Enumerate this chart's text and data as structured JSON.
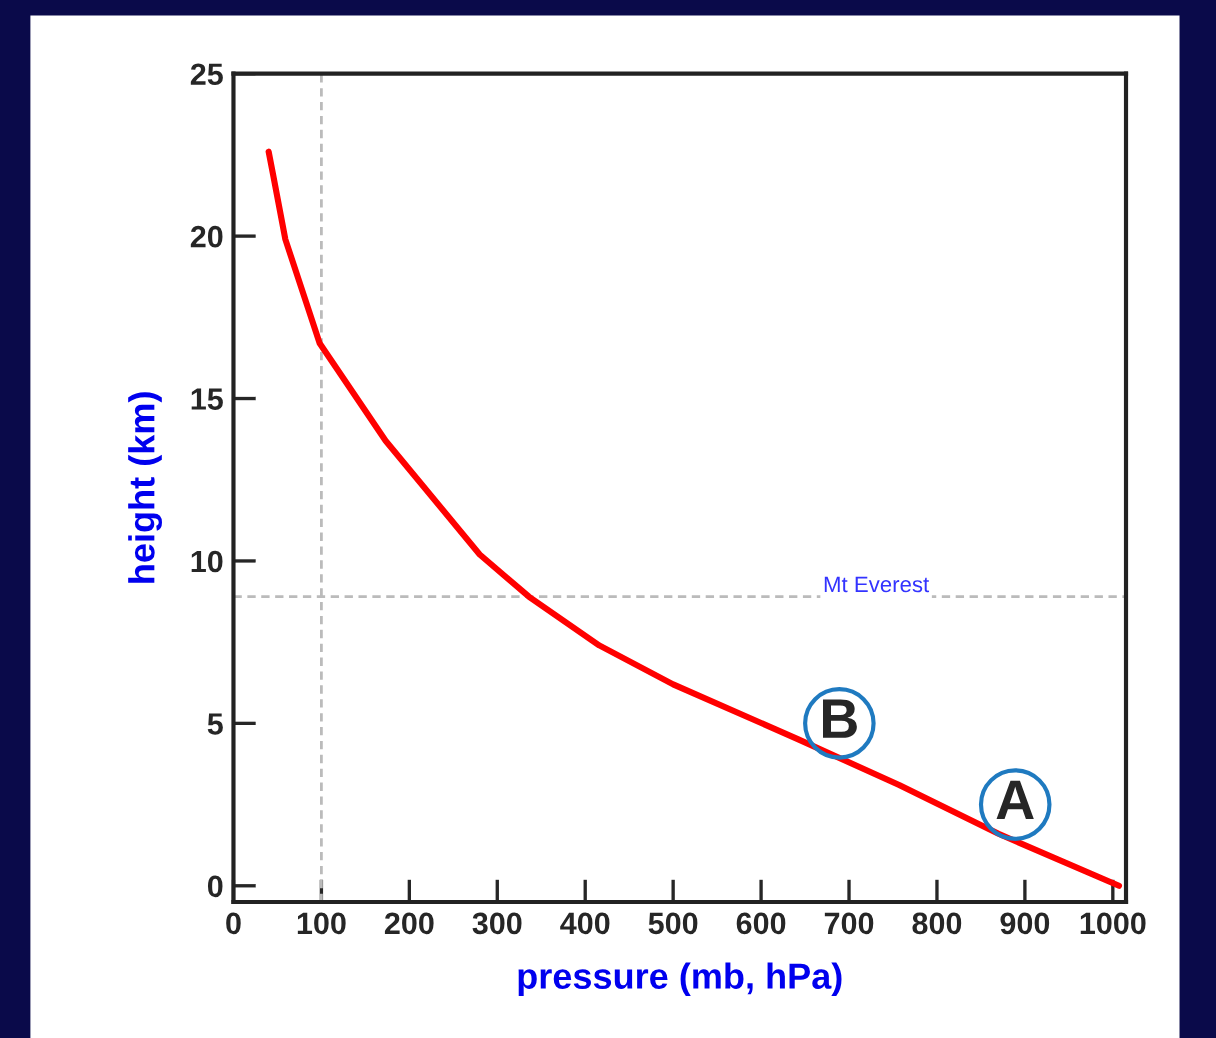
{
  "chart_data": {
    "type": "line",
    "xlabel": "pressure (mb, hPa)",
    "ylabel": "height (km)",
    "x": [
      40,
      45,
      59,
      98,
      173,
      280,
      336,
      416,
      500,
      643,
      757,
      870,
      1007
    ],
    "series": [
      {
        "color": "#ff0000",
        "values": [
          22.6,
          21.9,
          19.9,
          16.7,
          13.7,
          10.2,
          8.9,
          7.4,
          6.2,
          4.5,
          3.1,
          1.6,
          0
        ]
      }
    ],
    "xlim": [
      0,
      1015
    ],
    "ylim": [
      -0.5,
      25
    ],
    "xticks": [
      0,
      100,
      200,
      300,
      400,
      500,
      600,
      700,
      800,
      900,
      1000
    ],
    "yticks": [
      0,
      5,
      10,
      15,
      20,
      25
    ],
    "ref_lines": [
      {
        "axis": "x",
        "value": 100,
        "color": "#bbbbbb",
        "line_style": "dashed"
      },
      {
        "axis": "y",
        "value": 8.9,
        "label": "Mt Everest",
        "color": "#bbbbbb",
        "line_style": "dashed"
      }
    ],
    "annotations": [
      {
        "text": "B",
        "x": 689,
        "y": 5.0
      },
      {
        "text": "A",
        "x": 889,
        "y": 2.5
      }
    ],
    "grid": false,
    "legend": false,
    "marker": "none",
    "line_style": "solid"
  }
}
